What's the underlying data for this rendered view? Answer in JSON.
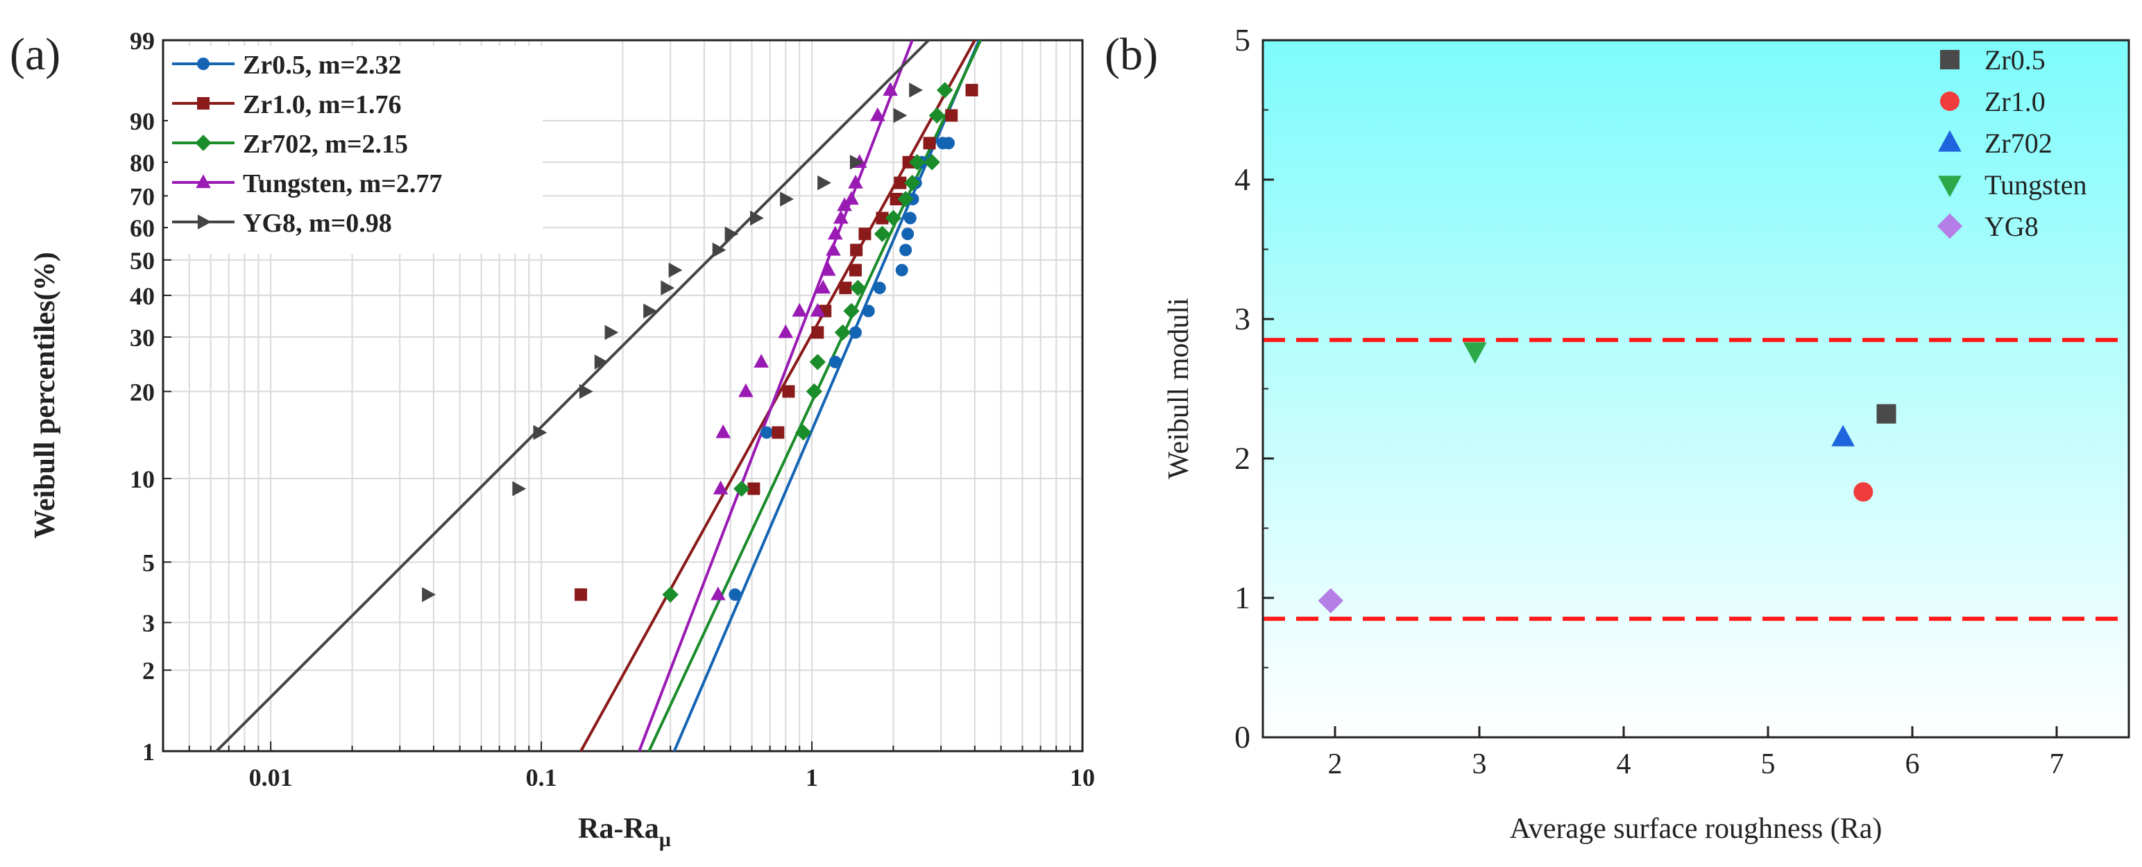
{
  "chart_data": [
    {
      "panel_label": "(a)",
      "type": "line",
      "subtype": "weibull-probability-plot",
      "xscale": "log",
      "xlim": [
        0.004,
        10
      ],
      "ylim": [
        1,
        99
      ],
      "xlabel": "Ra-Ra",
      "xlabel_sub": "μ",
      "ylabel": "Weibull percentiles(%)",
      "xticks": [
        0.01,
        0.1,
        1,
        10
      ],
      "xtick_labels": [
        "0.01",
        "0.1",
        "1",
        "10"
      ],
      "yticks": [
        1,
        2,
        3,
        5,
        10,
        20,
        30,
        40,
        50,
        60,
        70,
        80,
        90,
        99
      ],
      "ytick_labels": [
        "1",
        "2",
        "3",
        "5",
        "10",
        "20",
        "30",
        "40",
        "50",
        "60",
        "70",
        "80",
        "90",
        "99"
      ],
      "grid": true,
      "legend_position": "top-left",
      "series": [
        {
          "name": "Zr0.5, m=2.32",
          "color": "#1464b4",
          "marker": "circle",
          "fit": {
            "x": [
              0.31,
              4.15
            ],
            "y": [
              1,
              99
            ]
          },
          "points": {
            "x": [
              0.52,
              0.68,
              1.22,
              1.45,
              1.62,
              1.78,
              2.15,
              2.22,
              2.26,
              2.31,
              2.36,
              2.42,
              2.55,
              3.05,
              3.2
            ],
            "y": [
              3.8,
              14.5,
              25,
              31,
              36,
              42,
              47,
              53,
              58,
              63,
              69,
              74,
              80,
              85,
              85
            ]
          }
        },
        {
          "name": "Zr1.0, m=1.76",
          "color": "#8b1a1a",
          "marker": "square",
          "fit": {
            "x": [
              0.14,
              4.0
            ],
            "y": [
              1,
              99
            ]
          },
          "points": {
            "x": [
              0.14,
              0.61,
              0.75,
              0.82,
              1.05,
              1.12,
              1.33,
              1.45,
              1.46,
              1.57,
              1.82,
              2.05,
              2.12,
              2.28,
              2.72,
              3.28,
              3.9
            ],
            "y": [
              3.8,
              9.2,
              14.5,
              20,
              31,
              36,
              42,
              47,
              53,
              58,
              63,
              69,
              74,
              80,
              85,
              91,
              95
            ]
          }
        },
        {
          "name": "Zr702, m=2.15",
          "color": "#1a8c2a",
          "marker": "diamond",
          "fit": {
            "x": [
              0.25,
              4.2
            ],
            "y": [
              1,
              99
            ]
          },
          "points": {
            "x": [
              0.3,
              0.55,
              0.93,
              1.02,
              1.05,
              1.3,
              1.4,
              1.48,
              1.82,
              2.0,
              2.22,
              2.35,
              2.45,
              2.78,
              2.9,
              3.1
            ],
            "y": [
              3.8,
              9.2,
              14.5,
              20,
              25,
              31,
              36,
              42,
              58,
              63,
              69,
              74,
              80,
              80,
              91,
              95
            ]
          }
        },
        {
          "name": "Tungsten, m=2.77",
          "color": "#9a1ab4",
          "marker": "triangle-up",
          "fit": {
            "x": [
              0.23,
              2.35
            ],
            "y": [
              1,
              99
            ]
          },
          "points": {
            "x": [
              0.45,
              0.46,
              0.47,
              0.57,
              0.65,
              0.8,
              0.9,
              1.05,
              1.1,
              1.15,
              1.2,
              1.22,
              1.28,
              1.32,
              1.4,
              1.45,
              1.5,
              1.75,
              1.95
            ],
            "y": [
              3.8,
              9.2,
              14.5,
              20,
              25,
              31,
              36,
              36,
              42,
              47,
              53,
              58,
              63,
              67,
              69,
              74,
              80,
              91,
              95
            ]
          }
        },
        {
          "name": "YG8, m=0.98",
          "color": "#444444",
          "marker": "triangle-right",
          "fit": {
            "x": [
              0.0063,
              2.7
            ],
            "y": [
              1,
              99
            ]
          },
          "points": {
            "x": [
              0.038,
              0.082,
              0.098,
              0.145,
              0.165,
              0.18,
              0.25,
              0.29,
              0.31,
              0.45,
              0.5,
              0.62,
              0.8,
              1.1,
              1.45,
              2.1,
              2.4
            ],
            "y": [
              3.8,
              9.2,
              14.5,
              20,
              25,
              31,
              36,
              42,
              47,
              53,
              58,
              63,
              69,
              74,
              80,
              91,
              95
            ]
          }
        }
      ]
    },
    {
      "panel_label": "(b)",
      "type": "scatter",
      "xlim": [
        1.5,
        7.5
      ],
      "ylim": [
        0,
        5
      ],
      "xlabel": "Average surface roughness (Ra)",
      "ylabel": "Weibull moduli",
      "xticks": [
        2,
        3,
        4,
        5,
        6,
        7
      ],
      "xtick_labels": [
        "2",
        "3",
        "4",
        "5",
        "6",
        "7"
      ],
      "yticks": [
        0,
        1,
        2,
        3,
        4,
        5
      ],
      "ytick_labels": [
        "0",
        "1",
        "2",
        "3",
        "4",
        "5"
      ],
      "grid": false,
      "background_gradient": [
        "#7efbfb",
        "#ffffff"
      ],
      "reference_lines": [
        {
          "y": 2.85,
          "color": "#ff1a1a",
          "style": "dashed"
        },
        {
          "y": 0.85,
          "color": "#ff1a1a",
          "style": "dashed"
        }
      ],
      "legend_position": "top-right",
      "series": [
        {
          "name": "Zr0.5",
          "color": "#4a4a4a",
          "marker": "square",
          "x": [
            5.82
          ],
          "y": [
            2.32
          ]
        },
        {
          "name": "Zr1.0",
          "color": "#f03c3c",
          "marker": "circle",
          "x": [
            5.66
          ],
          "y": [
            1.76
          ]
        },
        {
          "name": "Zr702",
          "color": "#1e64dc",
          "marker": "triangle-up",
          "x": [
            5.52
          ],
          "y": [
            2.15
          ]
        },
        {
          "name": "Tungsten",
          "color": "#2aa84a",
          "marker": "triangle-down",
          "x": [
            2.97
          ],
          "y": [
            2.77
          ]
        },
        {
          "name": "YG8",
          "color": "#b47ee6",
          "marker": "diamond",
          "x": [
            1.97
          ],
          "y": [
            0.98
          ]
        }
      ]
    }
  ]
}
